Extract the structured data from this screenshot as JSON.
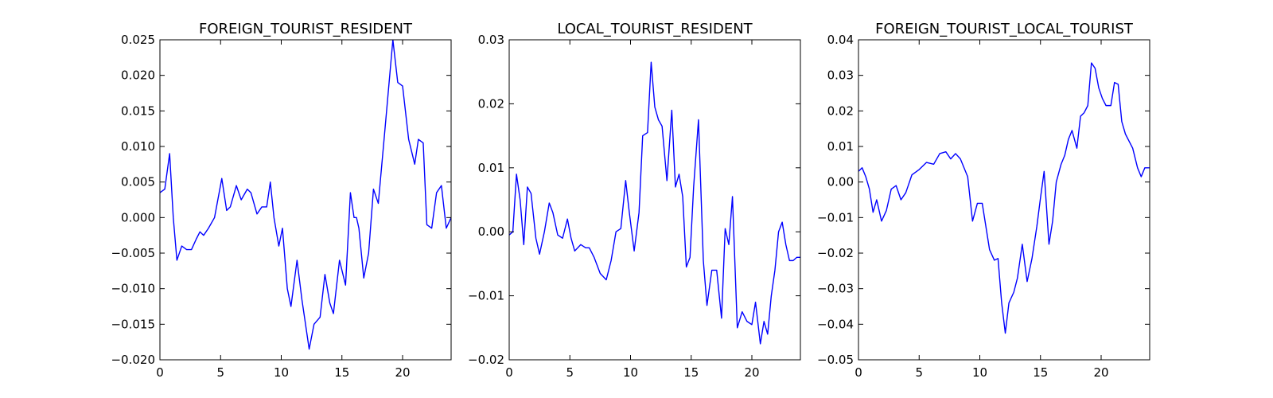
{
  "figure": {
    "background": "#ffffff",
    "line_color": "#0000ff"
  },
  "chart_data": [
    {
      "type": "line",
      "title": "FOREIGN_TOURIST_RESIDENT",
      "xlim": [
        0,
        24
      ],
      "ylim": [
        -0.02,
        0.025
      ],
      "xticks": [
        0,
        5,
        10,
        15,
        20
      ],
      "xtick_labels": [
        "0",
        "5",
        "10",
        "15",
        "20"
      ],
      "yticks": [
        -0.02,
        -0.015,
        -0.01,
        -0.005,
        0.0,
        0.005,
        0.01,
        0.015,
        0.02,
        0.025
      ],
      "ytick_labels": [
        "−0.020",
        "−0.015",
        "−0.010",
        "−0.005",
        "0.000",
        "0.005",
        "0.010",
        "0.015",
        "0.020",
        "0.025"
      ],
      "series": [
        {
          "color": "#0000ff",
          "x": [
            0,
            0.4,
            0.8,
            1.1,
            1.4,
            1.8,
            2.2,
            2.6,
            3.0,
            3.3,
            3.6,
            4.0,
            4.5,
            5.1,
            5.5,
            5.8,
            6.3,
            6.7,
            7.2,
            7.5,
            8.0,
            8.4,
            8.8,
            9.1,
            9.4,
            9.8,
            10.1,
            10.5,
            10.8,
            11.3,
            11.7,
            12.3,
            12.7,
            13.2,
            13.6,
            14.0,
            14.3,
            14.8,
            15.3,
            15.7,
            16.0,
            16.2,
            16.4,
            16.8,
            17.2,
            17.6,
            18.0,
            18.5,
            19.2,
            19.6,
            20.0,
            20.5,
            21.0,
            21.3,
            21.7,
            22.0,
            22.4,
            22.8,
            23.2,
            23.6,
            24.0
          ],
          "y": [
            0.0035,
            0.004,
            0.009,
            0.0,
            -0.006,
            -0.004,
            -0.0045,
            -0.0045,
            -0.003,
            -0.002,
            -0.0025,
            -0.0015,
            0.0,
            0.0055,
            0.001,
            0.0015,
            0.0045,
            0.0025,
            0.004,
            0.0035,
            0.0005,
            0.0015,
            0.0015,
            0.005,
            0.0,
            -0.004,
            -0.0015,
            -0.01,
            -0.0125,
            -0.006,
            -0.0115,
            -0.0185,
            -0.015,
            -0.014,
            -0.008,
            -0.012,
            -0.0135,
            -0.006,
            -0.0095,
            0.0035,
            0.0,
            0.0,
            -0.0015,
            -0.0085,
            -0.005,
            0.004,
            0.002,
            0.0115,
            0.025,
            0.019,
            0.0185,
            0.011,
            0.0075,
            0.011,
            0.0105,
            -0.001,
            -0.0015,
            0.0035,
            0.0045,
            -0.0015,
            0.0
          ]
        }
      ]
    },
    {
      "type": "line",
      "title": "LOCAL_TOURIST_RESIDENT",
      "xlim": [
        0,
        24
      ],
      "ylim": [
        -0.02,
        0.03
      ],
      "xticks": [
        0,
        5,
        10,
        15,
        20
      ],
      "xtick_labels": [
        "0",
        "5",
        "10",
        "15",
        "20"
      ],
      "yticks": [
        -0.02,
        -0.01,
        0.0,
        0.01,
        0.02,
        0.03
      ],
      "ytick_labels": [
        "−0.02",
        "−0.01",
        "0.00",
        "0.01",
        "0.02",
        "0.03"
      ],
      "series": [
        {
          "color": "#0000ff",
          "x": [
            0,
            0.3,
            0.6,
            0.9,
            1.2,
            1.5,
            1.8,
            2.2,
            2.5,
            2.9,
            3.3,
            3.6,
            4.0,
            4.4,
            4.8,
            5.1,
            5.4,
            5.9,
            6.3,
            6.6,
            7.0,
            7.5,
            8.0,
            8.4,
            8.8,
            9.2,
            9.6,
            9.9,
            10.3,
            10.7,
            11.0,
            11.4,
            11.7,
            12.0,
            12.3,
            12.6,
            13.0,
            13.4,
            13.7,
            14.0,
            14.3,
            14.6,
            14.9,
            15.2,
            15.6,
            16.0,
            16.3,
            16.7,
            17.1,
            17.5,
            17.8,
            18.1,
            18.4,
            18.8,
            19.2,
            19.6,
            20.0,
            20.3,
            20.7,
            21.0,
            21.3,
            21.6,
            21.9,
            22.2,
            22.5,
            22.8,
            23.1,
            23.4,
            23.7,
            24.0
          ],
          "y": [
            -0.0005,
            0.0,
            0.009,
            0.005,
            -0.002,
            0.007,
            0.006,
            -0.001,
            -0.0035,
            0.0,
            0.0045,
            0.003,
            -0.0005,
            -0.001,
            0.002,
            -0.001,
            -0.003,
            -0.002,
            -0.0025,
            -0.0025,
            -0.004,
            -0.0065,
            -0.0075,
            -0.0045,
            0.0,
            0.0005,
            0.008,
            0.003,
            -0.003,
            0.003,
            0.015,
            0.0155,
            0.0265,
            0.0195,
            0.0175,
            0.0165,
            0.008,
            0.019,
            0.007,
            0.009,
            0.0055,
            -0.0055,
            -0.004,
            0.007,
            0.0175,
            -0.0045,
            -0.0115,
            -0.006,
            -0.006,
            -0.0135,
            0.0005,
            -0.002,
            0.0055,
            -0.015,
            -0.0125,
            -0.014,
            -0.0145,
            -0.011,
            -0.0175,
            -0.014,
            -0.016,
            -0.01,
            -0.006,
            0.0,
            0.0015,
            -0.002,
            -0.0045,
            -0.0045,
            -0.004,
            -0.004
          ]
        }
      ]
    },
    {
      "type": "line",
      "title": "FOREIGN_TOURIST_LOCAL_TOURIST",
      "xlim": [
        0,
        24
      ],
      "ylim": [
        -0.05,
        0.04
      ],
      "xticks": [
        0,
        5,
        10,
        15,
        20
      ],
      "xtick_labels": [
        "0",
        "5",
        "10",
        "15",
        "20"
      ],
      "yticks": [
        -0.05,
        -0.04,
        -0.03,
        -0.02,
        -0.01,
        0.0,
        0.01,
        0.02,
        0.03,
        0.04
      ],
      "ytick_labels": [
        "−0.05",
        "−0.04",
        "−0.03",
        "−0.02",
        "−0.01",
        "0.00",
        "0.01",
        "0.02",
        "0.03",
        "0.04"
      ],
      "series": [
        {
          "color": "#0000ff",
          "x": [
            0,
            0.3,
            0.6,
            0.9,
            1.2,
            1.5,
            1.9,
            2.3,
            2.7,
            3.1,
            3.5,
            3.9,
            4.4,
            5.0,
            5.6,
            6.2,
            6.7,
            7.2,
            7.6,
            8.0,
            8.4,
            9.0,
            9.4,
            9.8,
            10.2,
            10.5,
            10.8,
            11.2,
            11.5,
            11.8,
            12.1,
            12.4,
            12.8,
            13.1,
            13.5,
            13.9,
            14.3,
            14.7,
            15.0,
            15.3,
            15.7,
            16.0,
            16.3,
            16.7,
            17.0,
            17.3,
            17.6,
            18.0,
            18.3,
            18.6,
            18.9,
            19.2,
            19.5,
            19.8,
            20.1,
            20.4,
            20.8,
            21.1,
            21.4,
            21.7,
            22.0,
            22.3,
            22.6,
            23.0,
            23.3,
            23.6,
            24.0
          ],
          "y": [
            0.003,
            0.004,
            0.0015,
            -0.002,
            -0.0085,
            -0.005,
            -0.011,
            -0.008,
            -0.002,
            -0.001,
            -0.005,
            -0.003,
            0.002,
            0.0035,
            0.0055,
            0.005,
            0.008,
            0.0085,
            0.0065,
            0.008,
            0.0065,
            0.0015,
            -0.011,
            -0.006,
            -0.006,
            -0.0125,
            -0.019,
            -0.022,
            -0.0215,
            -0.034,
            -0.0425,
            -0.034,
            -0.031,
            -0.027,
            -0.0175,
            -0.028,
            -0.0215,
            -0.0125,
            -0.0045,
            0.003,
            -0.0175,
            -0.011,
            0.0,
            0.005,
            0.0075,
            0.012,
            0.0145,
            0.0095,
            0.0185,
            0.0195,
            0.0215,
            0.0335,
            0.032,
            0.0265,
            0.0235,
            0.0215,
            0.0215,
            0.028,
            0.0275,
            0.017,
            0.0135,
            0.0115,
            0.0095,
            0.004,
            0.0015,
            0.004,
            0.004
          ]
        }
      ]
    }
  ]
}
